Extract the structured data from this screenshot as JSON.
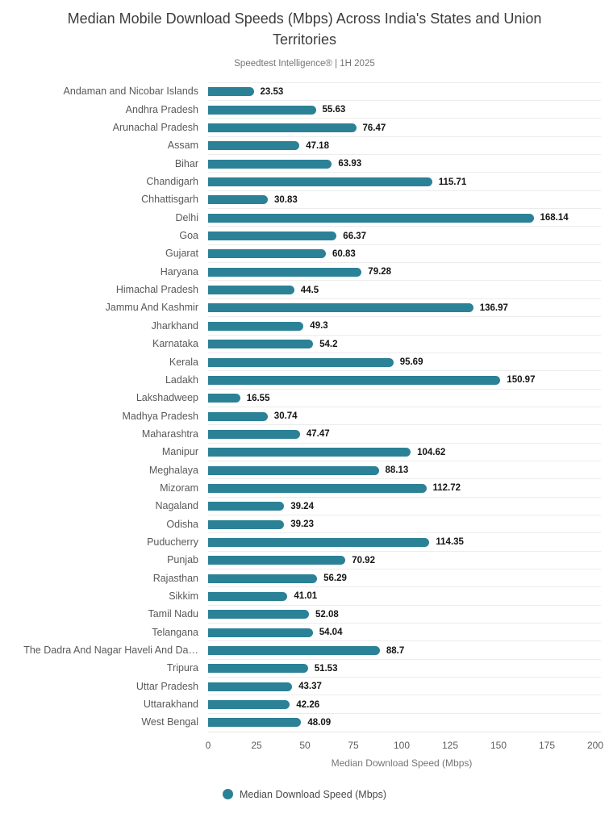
{
  "title": "Median Mobile Download Speeds (Mbps) Across India's States and Union Territories",
  "subtitle": "Speedtest Intelligence® | 1H 2025",
  "colors": {
    "bar": "#2b8196",
    "row_separator": "#ececec",
    "category_label": "#595959",
    "value_label": "#141414"
  },
  "legend": {
    "label": "Median Download Speed (Mbps)",
    "position": "bottom-center"
  },
  "chart_data": {
    "type": "bar",
    "orientation": "horizontal",
    "title": "Median Mobile Download Speeds (Mbps) Across India's States and Union Territories",
    "subtitle": "Speedtest Intelligence® | 1H 2025",
    "xlabel": "Median Download Speed (Mbps)",
    "ylabel": "",
    "xlim": [
      0,
      200
    ],
    "xticks": [
      0,
      25,
      50,
      75,
      100,
      125,
      150,
      175,
      200
    ],
    "grid": "horizontal row separators only, no vertical gridlines",
    "legend_position": "bottom-center",
    "bar_color": "#2b8196",
    "value_labels": "bold, right of each bar",
    "categories": [
      "Andaman and Nicobar Islands",
      "Andhra Pradesh",
      "Arunachal Pradesh",
      "Assam",
      "Bihar",
      "Chandigarh",
      "Chhattisgarh",
      "Delhi",
      "Goa",
      "Gujarat",
      "Haryana",
      "Himachal Pradesh",
      "Jammu And Kashmir",
      "Jharkhand",
      "Karnataka",
      "Kerala",
      "Ladakh",
      "Lakshadweep",
      "Madhya Pradesh",
      "Maharashtra",
      "Manipur",
      "Meghalaya",
      "Mizoram",
      "Nagaland",
      "Odisha",
      "Puducherry",
      "Punjab",
      "Rajasthan",
      "Sikkim",
      "Tamil Nadu",
      "Telangana",
      "The Dadra And Nagar Haveli And Da…",
      "Tripura",
      "Uttar Pradesh",
      "Uttarakhand",
      "West Bengal"
    ],
    "series": [
      {
        "name": "Median Download Speed (Mbps)",
        "values": [
          23.53,
          55.63,
          76.47,
          47.18,
          63.93,
          115.71,
          30.83,
          168.14,
          66.37,
          60.83,
          79.28,
          44.5,
          136.97,
          49.3,
          54.2,
          95.69,
          150.97,
          16.55,
          30.74,
          47.47,
          104.62,
          88.13,
          112.72,
          39.24,
          39.23,
          114.35,
          70.92,
          56.29,
          41.01,
          52.08,
          54.04,
          88.7,
          51.53,
          43.37,
          42.26,
          48.09
        ]
      }
    ]
  }
}
